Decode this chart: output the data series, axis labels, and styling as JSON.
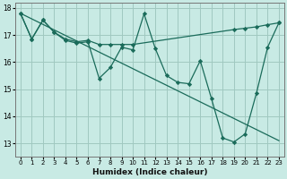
{
  "xlabel": "Humidex (Indice chaleur)",
  "xlim": [
    -0.5,
    23.5
  ],
  "ylim": [
    12.5,
    18.2
  ],
  "yticks": [
    13,
    14,
    15,
    16,
    17,
    18
  ],
  "xticks": [
    0,
    1,
    2,
    3,
    4,
    5,
    6,
    7,
    8,
    9,
    10,
    11,
    12,
    13,
    14,
    15,
    16,
    17,
    18,
    19,
    20,
    21,
    22,
    23
  ],
  "bg_color": "#c8eae4",
  "grid_color": "#a0c8c0",
  "line_color": "#1a6b5a",
  "line1_x": [
    0,
    1,
    2,
    3,
    4,
    5,
    6,
    7,
    8,
    9,
    10,
    11,
    12,
    13,
    14,
    15,
    16,
    17,
    18,
    19,
    20,
    21,
    22,
    23
  ],
  "line1_y": [
    17.8,
    16.85,
    17.55,
    17.1,
    16.8,
    16.7,
    16.75,
    15.4,
    15.8,
    16.55,
    16.45,
    17.78,
    16.5,
    15.5,
    15.25,
    15.2,
    16.05,
    14.65,
    13.2,
    13.05,
    13.35,
    14.85,
    16.55,
    17.45
  ],
  "line2_x": [
    0,
    1,
    2,
    3,
    4,
    5,
    6,
    7,
    8,
    9,
    10,
    19,
    20,
    21,
    22,
    23
  ],
  "line2_y": [
    17.8,
    16.85,
    17.55,
    17.1,
    16.85,
    16.75,
    16.8,
    16.65,
    16.65,
    16.65,
    16.65,
    17.2,
    17.25,
    17.3,
    17.38,
    17.45
  ],
  "line3_x": [
    0,
    23
  ],
  "line3_y": [
    17.8,
    13.1
  ]
}
